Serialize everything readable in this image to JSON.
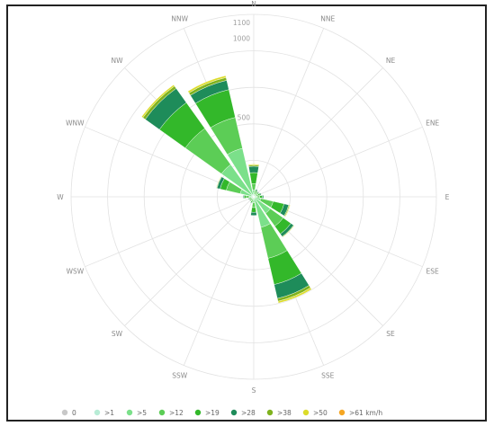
{
  "chart_data": {
    "type": "windrose",
    "directions": [
      "N",
      "NNE",
      "NE",
      "ENE",
      "E",
      "ESE",
      "SE",
      "SSE",
      "S",
      "SSW",
      "SW",
      "WSW",
      "W",
      "WNW",
      "NW",
      "NNW"
    ],
    "radial_ticks": [
      "1100",
      "1000",
      "500"
    ],
    "radial_tick_values": [
      1100,
      1000,
      500
    ],
    "radial_max": 1150,
    "series": [
      {
        "name": "0",
        "color": "#c8c8c8",
        "values": [
          0,
          0,
          0,
          0,
          0,
          0,
          0,
          0,
          0,
          0,
          0,
          0,
          0,
          0,
          0,
          0
        ]
      },
      {
        "name": ">1",
        "color": "#b8ecd6",
        "values": [
          8,
          6,
          6,
          6,
          6,
          6,
          8,
          8,
          8,
          6,
          6,
          6,
          10,
          8,
          20,
          14
        ]
      },
      {
        "name": ">5",
        "color": "#7be08a",
        "values": [
          35,
          12,
          12,
          10,
          14,
          40,
          120,
          190,
          30,
          12,
          10,
          10,
          18,
          80,
          230,
          300
        ]
      },
      {
        "name": ">12",
        "color": "#5ccd56",
        "values": [
          40,
          14,
          10,
          14,
          18,
          80,
          100,
          200,
          30,
          12,
          10,
          10,
          20,
          90,
          280,
          200
        ]
      },
      {
        "name": ">19",
        "color": "#33b82a",
        "values": [
          70,
          10,
          8,
          12,
          16,
          70,
          60,
          170,
          30,
          8,
          6,
          6,
          12,
          40,
          200,
          180
        ]
      },
      {
        "name": ">28",
        "color": "#1e8c5a",
        "values": [
          40,
          6,
          4,
          6,
          8,
          30,
          20,
          90,
          20,
          4,
          2,
          4,
          6,
          20,
          110,
          60
        ]
      },
      {
        "name": ">38",
        "color": "#7fb21e",
        "values": [
          8,
          0,
          0,
          0,
          0,
          6,
          4,
          18,
          0,
          0,
          0,
          0,
          0,
          4,
          18,
          18
        ]
      },
      {
        "name": ">50",
        "color": "#dcdc2a",
        "values": [
          6,
          0,
          0,
          0,
          0,
          4,
          2,
          12,
          0,
          0,
          0,
          0,
          0,
          2,
          10,
          12
        ]
      },
      {
        "name": ">61 km/h",
        "color": "#f5a623",
        "values": [
          0,
          0,
          0,
          0,
          0,
          0,
          0,
          0,
          0,
          0,
          0,
          0,
          0,
          0,
          0,
          0
        ]
      }
    ],
    "grid": true,
    "legend": "bottom"
  }
}
